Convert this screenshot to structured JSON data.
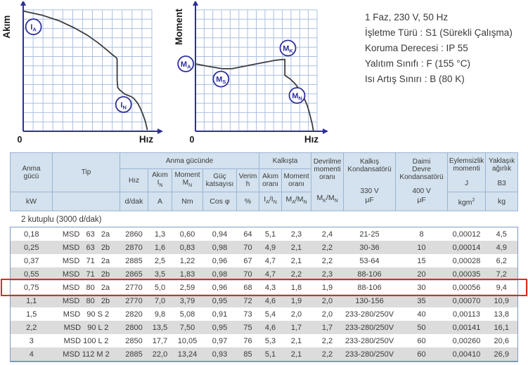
{
  "colors": {
    "grid": "#a9c0e2",
    "axis": "#2e2e9e",
    "curve": "#3c3c3c",
    "marker": "#2e2e9e",
    "header_bg": "#d3e2ee",
    "row_alt": "#dcdcdc",
    "border_outer": "#7d99c8",
    "border_inner": "#9ab3d5",
    "highlight": "#e6281e",
    "text": "#3b3b3b"
  },
  "charts": {
    "current": {
      "y_axis_label": "Akım",
      "x_axis_label": "Hız",
      "origin_label": "0",
      "grid_cols": 13,
      "grid_rows": 13,
      "curve": [
        [
          0,
          1
        ],
        [
          15,
          4.5
        ],
        [
          28,
          9
        ],
        [
          40,
          15
        ],
        [
          50,
          21
        ],
        [
          58,
          27
        ],
        [
          65,
          33
        ],
        [
          70,
          37.5
        ],
        [
          72.5,
          39.5
        ],
        [
          73,
          41
        ],
        [
          73,
          58
        ],
        [
          73.5,
          64
        ],
        [
          75,
          66
        ],
        [
          79,
          69.5
        ],
        [
          84,
          71.5
        ],
        [
          86,
          73
        ],
        [
          89,
          77
        ],
        [
          91,
          81
        ],
        [
          93,
          86
        ],
        [
          95,
          92
        ],
        [
          96.5,
          99
        ]
      ],
      "markers": [
        {
          "main": "I",
          "sub": "A",
          "x": 8,
          "y": 14
        },
        {
          "main": "I",
          "sub": "N",
          "x": 78,
          "y": 78
        }
      ]
    },
    "torque": {
      "y_axis_label": "Moment",
      "x_axis_label": "Hız",
      "origin_label": "0",
      "grid_cols": 14,
      "grid_rows": 13,
      "curve": [
        [
          0,
          44.5
        ],
        [
          10,
          46.5
        ],
        [
          22,
          48.5
        ],
        [
          30,
          48.5
        ],
        [
          45,
          45.5
        ],
        [
          58,
          43
        ],
        [
          66,
          41.5
        ],
        [
          71,
          41
        ],
        [
          73.5,
          40.8
        ],
        [
          73.5,
          54
        ],
        [
          78,
          57
        ],
        [
          82,
          61
        ],
        [
          86,
          66.5
        ],
        [
          89,
          72
        ],
        [
          92,
          79
        ],
        [
          94,
          86
        ],
        [
          96,
          94
        ],
        [
          97,
          100
        ]
      ],
      "markers": [
        {
          "main": "M",
          "sub": "A",
          "x": -8,
          "y": 44.5
        },
        {
          "main": "M",
          "sub": "S",
          "x": 21,
          "y": 57
        },
        {
          "main": "M",
          "sub": "K",
          "x": 76,
          "y": 31.5
        },
        {
          "main": "M",
          "sub": "N",
          "x": 83.5,
          "y": 70.5
        }
      ]
    }
  },
  "specs": {
    "lines": [
      "1 Faz, 230 V, 50 Hz",
      "İşletme Türü : S1 (Sürekli Çalışma)",
      "Koruma Derecesi : IP 55",
      "Yalıtım Sınıfı : F (155 °C)",
      "Isı Artış Sınırı : B (80 K)"
    ]
  },
  "table": {
    "section_label": "2 kutuplu (3000 d/dak)",
    "header": {
      "anma_gucu": {
        "label_html": "Anma<br>gücü",
        "unit": "kW"
      },
      "tip": {
        "label": "Tip"
      },
      "groups": {
        "anma_gucunde": "Anma gücünde",
        "kalkista": "Kalkışta"
      },
      "hiz": {
        "label": "Hız",
        "unit": "d/dak"
      },
      "akim": {
        "label_html": "Akım<br>I<sub>N</sub>",
        "unit": "A"
      },
      "moment": {
        "label_html": "Moment<br>M<sub>N</sub>",
        "unit": "Nm"
      },
      "guc_katsayisi": {
        "label_html": "Güç<br>katsayısı",
        "unit": "Cos φ"
      },
      "verim": {
        "label_html": "Verim<br>h",
        "unit": "%"
      },
      "akim_orani": {
        "label_html": "Akım<br>oranı",
        "unit_html": "I<sub>A</sub>/I<sub>N</sub>"
      },
      "moment_orani": {
        "label_html": "Moment<br>oranı",
        "unit_html": "M<sub>A</sub>/M<sub>N</sub>"
      },
      "devrilme": {
        "label_html": "Devrilme<br>momenti<br>oranı",
        "unit_html": "M<sub>K</sub>/M<sub>N</sub>"
      },
      "kalkis_kond": {
        "label_html": "Kalkış<br>Kondansatörü",
        "voltage": "330 V",
        "unit": "μF"
      },
      "daimi_kond": {
        "label_html": "Daimi<br>Devre<br>Kondansatörü",
        "voltage": "400 V",
        "unit": "μF"
      },
      "eylemsizlik": {
        "label_html": "Eylemsizlik<br>momenti",
        "symbol": "J",
        "unit_html": "kgm<sup>2</sup>"
      },
      "yaklasik": {
        "label_html": "Yaklaşık<br>ağırlık",
        "symbol": "B3",
        "unit": "kg"
      }
    },
    "rows": [
      {
        "highlighted": false,
        "cells": [
          "0,18",
          "MSD   63   2a",
          "2860",
          "1,3",
          "0,60",
          "0,94",
          "64",
          "5,1",
          "2,3",
          "2,4",
          "21-25",
          "8",
          "0,00012",
          "4,5"
        ]
      },
      {
        "highlighted": false,
        "cells": [
          "0,25",
          "MSD   63   2b",
          "2870",
          "1,6",
          "0,83",
          "0,98",
          "70",
          "4,9",
          "2,1",
          "2,2",
          "30-36",
          "10",
          "0,00014",
          "4,9"
        ]
      },
      {
        "highlighted": false,
        "cells": [
          "0,37",
          "MSD   71   2a",
          "2885",
          "2,5",
          "1,22",
          "0,96",
          "67",
          "4,7",
          "2,1",
          "2,2",
          "53-64",
          "15",
          "0,00028",
          "6,2"
        ]
      },
      {
        "highlighted": false,
        "cells": [
          "0,55",
          "MSD   71   2b",
          "2865",
          "3,5",
          "1,83",
          "0,98",
          "70",
          "4,7",
          "2,2",
          "2,3",
          "88-106",
          "20",
          "0,00035",
          "7,2"
        ]
      },
      {
        "highlighted": true,
        "cells": [
          "0,75",
          "MSD   80   2a",
          "2770",
          "5,0",
          "2,59",
          "0,96",
          "68",
          "4,3",
          "1,8",
          "1,9",
          "88-106",
          "30",
          "0,00056",
          "9,4"
        ]
      },
      {
        "highlighted": false,
        "cells": [
          "1,1",
          "MSD   80   2b",
          "2770",
          "7,0",
          "3,79",
          "0,95",
          "72",
          "4,6",
          "1,9",
          "2,0",
          "130-156",
          "35",
          "0,00070",
          "10,9"
        ]
      },
      {
        "highlighted": false,
        "cells": [
          "1,5",
          "MSD   90 S 2",
          "2820",
          "9,8",
          "5,08",
          "0,91",
          "73",
          "5,4",
          "2,0",
          "2,0",
          "233-280/250V",
          "40",
          "0,00113",
          "13,8"
        ]
      },
      {
        "highlighted": false,
        "cells": [
          "2,2",
          "MSD   90 L 2",
          "2800",
          "13,5",
          "7,50",
          "0,95",
          "75",
          "4,6",
          "1,7",
          "1,7",
          "233-280/250V",
          "50",
          "0,00141",
          "16,1"
        ]
      },
      {
        "highlighted": false,
        "cells": [
          "3",
          "MSD 100 L 2",
          "2850",
          "17,7",
          "10,05",
          "0,97",
          "76",
          "5,3",
          "2,1",
          "2,2",
          "233-280/250V",
          "60",
          "0,00260",
          "20,6"
        ]
      },
      {
        "highlighted": false,
        "cells": [
          "4",
          "MSD 112 M 2",
          "2885",
          "22,0",
          "13,24",
          "0,93",
          "85",
          "5,1",
          "2,1",
          "2,2",
          "233-280/250V",
          "60",
          "0,00410",
          "26,9"
        ]
      }
    ]
  }
}
